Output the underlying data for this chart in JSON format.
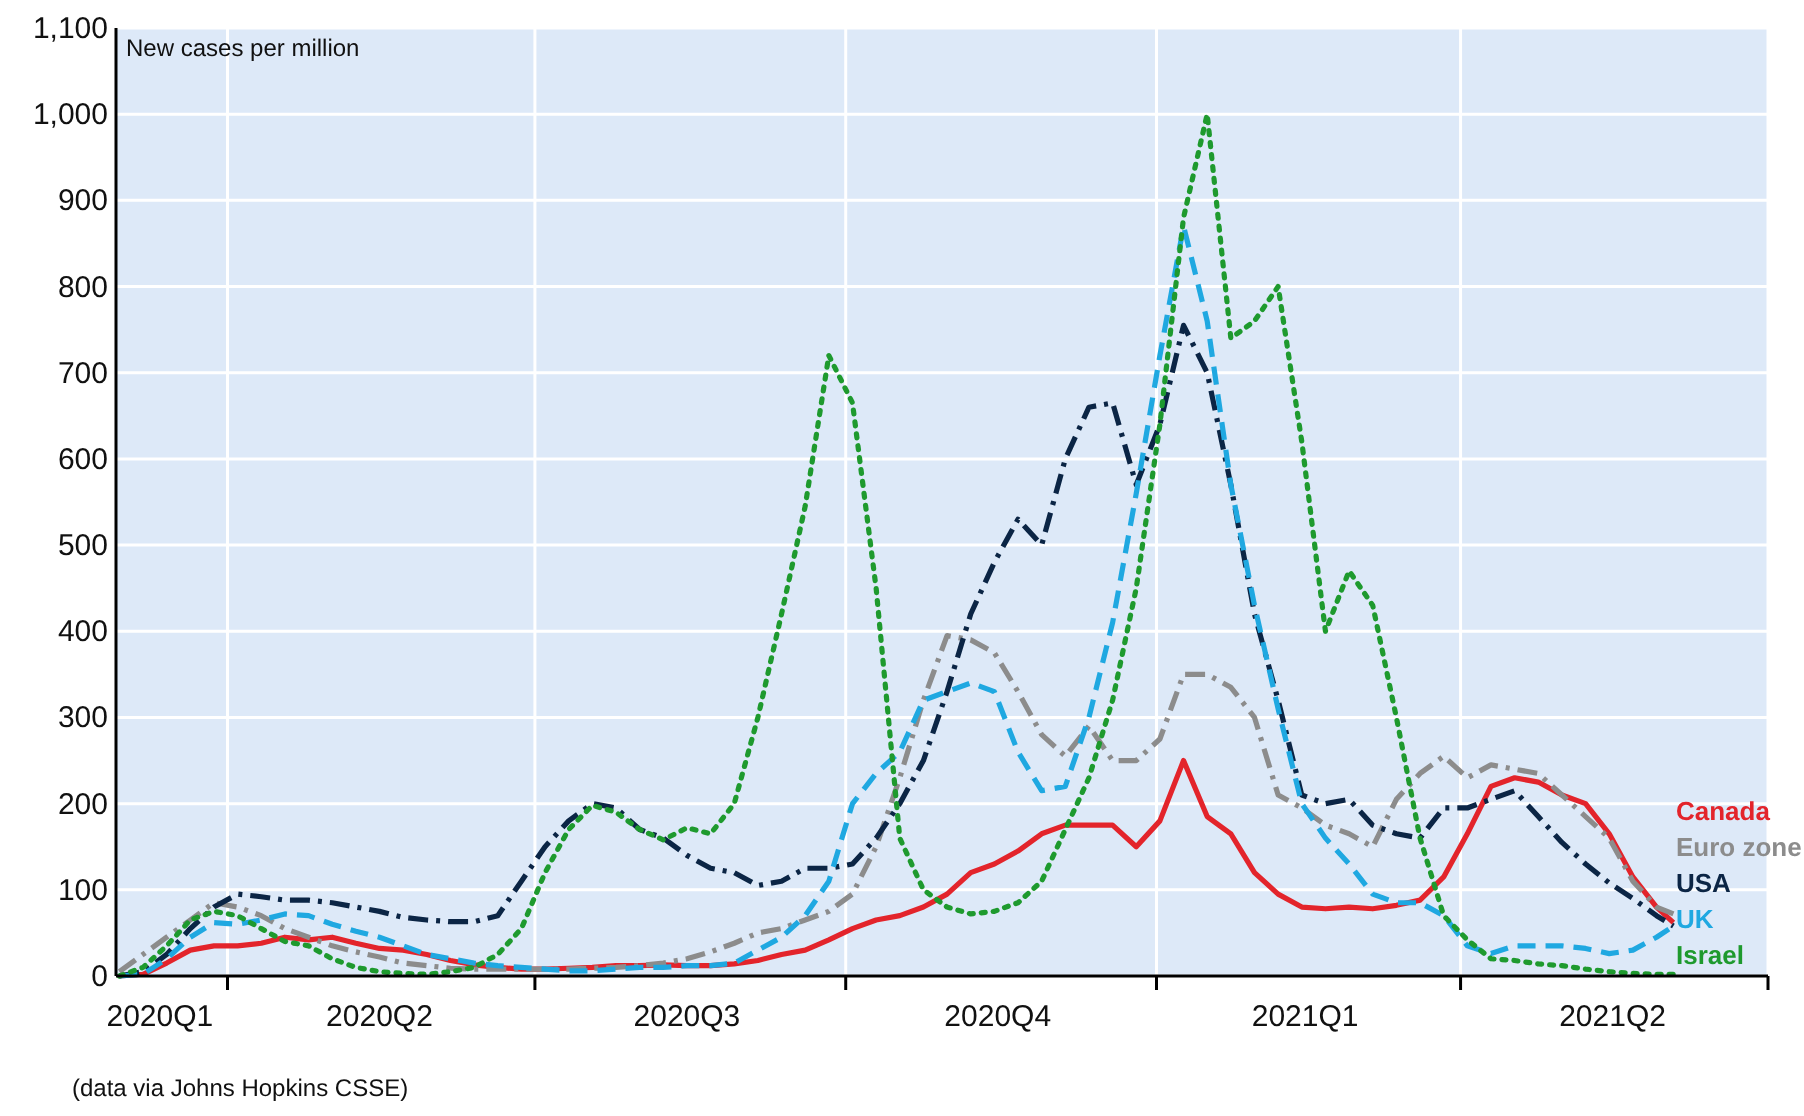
{
  "chart_data": {
    "type": "line",
    "ylabel": "New cases per million",
    "annotations": [
      "(data via Johns Hopkins CSSE)"
    ],
    "x": [
      "2020-02-29",
      "2020-03-07",
      "2020-03-14",
      "2020-03-21",
      "2020-03-28",
      "2020-04-04",
      "2020-04-11",
      "2020-04-18",
      "2020-04-25",
      "2020-05-02",
      "2020-05-09",
      "2020-05-16",
      "2020-05-23",
      "2020-05-30",
      "2020-06-06",
      "2020-06-13",
      "2020-06-20",
      "2020-06-27",
      "2020-07-04",
      "2020-07-11",
      "2020-07-18",
      "2020-07-25",
      "2020-08-01",
      "2020-08-08",
      "2020-08-15",
      "2020-08-22",
      "2020-08-29",
      "2020-09-05",
      "2020-09-12",
      "2020-09-19",
      "2020-09-26",
      "2020-10-03",
      "2020-10-10",
      "2020-10-17",
      "2020-10-24",
      "2020-10-31",
      "2020-11-07",
      "2020-11-14",
      "2020-11-21",
      "2020-11-28",
      "2020-12-05",
      "2020-12-12",
      "2020-12-19",
      "2020-12-26",
      "2021-01-02",
      "2021-01-09",
      "2021-01-16",
      "2021-01-23",
      "2021-01-30",
      "2021-02-06",
      "2021-02-13",
      "2021-02-20",
      "2021-02-27",
      "2021-03-06",
      "2021-03-13",
      "2021-03-20",
      "2021-03-27",
      "2021-04-03",
      "2021-04-10",
      "2021-04-17",
      "2021-04-24",
      "2021-05-01",
      "2021-05-08",
      "2021-05-15",
      "2021-05-22",
      "2021-05-29",
      "2021-06-03"
    ],
    "xlim": [
      "2020-02-28",
      "2021-07-01"
    ],
    "xticks": [
      {
        "value": "2020-03-12",
        "label": "2020Q1"
      },
      {
        "value": "2020-04-01",
        "label": null
      },
      {
        "value": "2020-05-16",
        "label": "2020Q2"
      },
      {
        "value": "2020-07-01",
        "label": null
      },
      {
        "value": "2020-08-15",
        "label": "2020Q3"
      },
      {
        "value": "2020-10-01",
        "label": null
      },
      {
        "value": "2020-11-15",
        "label": "2020Q4"
      },
      {
        "value": "2021-01-01",
        "label": null
      },
      {
        "value": "2021-02-14",
        "label": "2021Q1"
      },
      {
        "value": "2021-04-01",
        "label": null
      },
      {
        "value": "2021-05-16",
        "label": "2021Q2"
      },
      {
        "value": "2021-07-01",
        "label": null
      }
    ],
    "ylim": [
      0,
      1100
    ],
    "yticks": [
      0,
      100,
      200,
      300,
      400,
      500,
      600,
      700,
      800,
      900,
      {
        "value": 1000,
        "label": "1,000"
      },
      {
        "value": 1100,
        "label": "1,100"
      }
    ],
    "grid": true,
    "legend": "right",
    "series": [
      {
        "name": "Canada",
        "color": "#e3242b",
        "line_style": "solid",
        "values": [
          0,
          2,
          15,
          30,
          35,
          35,
          38,
          45,
          42,
          45,
          38,
          32,
          30,
          25,
          18,
          13,
          10,
          8,
          8,
          9,
          10,
          12,
          12,
          13,
          12,
          12,
          14,
          18,
          25,
          30,
          42,
          55,
          65,
          70,
          80,
          95,
          120,
          130,
          145,
          165,
          175,
          175,
          175,
          150,
          180,
          250,
          185,
          165,
          120,
          95,
          80,
          78,
          80,
          78,
          82,
          88,
          115,
          165,
          220,
          230,
          225,
          210,
          200,
          165,
          115,
          80,
          62
        ]
      },
      {
        "name": "Euro zone",
        "color": "#8c8c8c",
        "line_style": "dashdot",
        "values": [
          5,
          25,
          45,
          65,
          85,
          80,
          70,
          55,
          45,
          35,
          28,
          22,
          15,
          12,
          9,
          8,
          8,
          8,
          8,
          8,
          9,
          10,
          12,
          15,
          20,
          28,
          38,
          50,
          55,
          65,
          75,
          95,
          150,
          230,
          320,
          395,
          390,
          375,
          330,
          280,
          255,
          290,
          250,
          250,
          275,
          350,
          350,
          335,
          300,
          210,
          195,
          175,
          165,
          150,
          205,
          235,
          255,
          230,
          245,
          240,
          235,
          210,
          185,
          160,
          110,
          80,
          72
        ]
      },
      {
        "name": "USA",
        "color": "#0b2545",
        "line_style": "dashdot",
        "values": [
          0,
          5,
          25,
          55,
          80,
          95,
          92,
          88,
          88,
          85,
          80,
          75,
          68,
          65,
          63,
          63,
          70,
          110,
          150,
          180,
          200,
          195,
          170,
          160,
          140,
          125,
          120,
          105,
          110,
          125,
          125,
          130,
          160,
          200,
          250,
          330,
          420,
          480,
          530,
          500,
          600,
          660,
          665,
          570,
          640,
          755,
          700,
          570,
          420,
          320,
          210,
          200,
          205,
          175,
          165,
          160,
          195,
          195,
          205,
          215,
          185,
          155,
          130,
          108,
          90,
          70,
          58
        ]
      },
      {
        "name": "UK",
        "color": "#1fa8e1",
        "line_style": "dashed",
        "values": [
          0,
          2,
          20,
          45,
          62,
          60,
          65,
          72,
          70,
          60,
          52,
          45,
          35,
          25,
          20,
          15,
          12,
          10,
          8,
          6,
          6,
          8,
          10,
          10,
          12,
          12,
          15,
          30,
          45,
          70,
          110,
          200,
          235,
          260,
          320,
          330,
          340,
          330,
          260,
          215,
          220,
          300,
          410,
          560,
          720,
          870,
          760,
          570,
          430,
          310,
          200,
          160,
          130,
          95,
          85,
          85,
          70,
          35,
          26,
          35,
          35,
          35,
          32,
          26,
          30,
          45,
          58
        ]
      },
      {
        "name": "Israel",
        "color": "#1e9a2e",
        "line_style": "dotted",
        "values": [
          0,
          10,
          35,
          65,
          75,
          70,
          55,
          40,
          35,
          20,
          10,
          5,
          3,
          2,
          5,
          10,
          25,
          55,
          120,
          170,
          198,
          190,
          170,
          158,
          172,
          165,
          200,
          300,
          420,
          545,
          720,
          665,
          450,
          160,
          100,
          80,
          72,
          75,
          85,
          110,
          170,
          230,
          320,
          450,
          640,
          880,
          1000,
          740,
          760,
          800,
          620,
          400,
          470,
          430,
          300,
          160,
          70,
          42,
          20,
          18,
          14,
          12,
          8,
          5,
          3,
          2,
          2
        ]
      }
    ]
  }
}
